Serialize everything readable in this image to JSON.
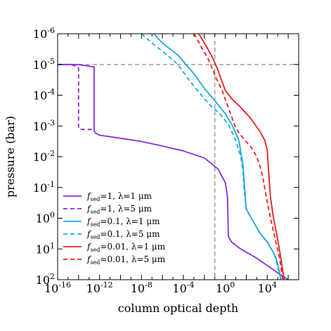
{
  "chart_data": {
    "type": "line",
    "xlabel": "column optical depth",
    "ylabel": "pressure (bar)",
    "x_scale": "log",
    "y_scale": "log",
    "y_inverted": true,
    "xlim": [
      1e-16,
      10000000.0
    ],
    "ylim": [
      1e-06,
      100.0
    ],
    "x_ticks": [
      {
        "base": "10",
        "exp": "-16",
        "value": 1e-16
      },
      {
        "base": "10",
        "exp": "-12",
        "value": 1e-12
      },
      {
        "base": "10",
        "exp": "-8",
        "value": 1e-08
      },
      {
        "base": "10",
        "exp": "-4",
        "value": 0.0001
      },
      {
        "base": "10",
        "exp": "0",
        "value": 1
      },
      {
        "base": "10",
        "exp": "4",
        "value": 10000.0
      }
    ],
    "y_ticks": [
      {
        "base": "10",
        "exp": "-6",
        "value": 1e-06
      },
      {
        "base": "10",
        "exp": "-5",
        "value": 1e-05
      },
      {
        "base": "10",
        "exp": "-4",
        "value": 0.0001
      },
      {
        "base": "10",
        "exp": "-3",
        "value": 0.001
      },
      {
        "base": "10",
        "exp": "-2",
        "value": 0.01
      },
      {
        "base": "10",
        "exp": "-1",
        "value": 0.1
      },
      {
        "base": "10",
        "exp": "0",
        "value": 1
      },
      {
        "base": "10",
        "exp": "1",
        "value": 10
      },
      {
        "base": "10",
        "exp": "2",
        "value": 100
      }
    ],
    "reference_lines": [
      {
        "orientation": "horizontal",
        "value": 1e-05,
        "color": "#a0a0a0",
        "dash": "dashed"
      },
      {
        "orientation": "vertical",
        "value": 0.1,
        "color": "#a0a0a0",
        "dash": "dashed"
      }
    ],
    "legend_position": "lower-left",
    "series": [
      {
        "label": {
          "pre": "f",
          "sub": "sed",
          "post": "=1, λ=1 μm"
        },
        "color": "#8b2be2",
        "dash": "solid",
        "points": [
          [
            1e-16,
            1e-05
          ],
          [
            1e-14,
            1e-05
          ],
          [
            3e-13,
            1.2e-05
          ],
          [
            3e-13,
            0.0001
          ],
          [
            3e-13,
            0.0005
          ],
          [
            3e-13,
            0.0014
          ],
          [
            4e-13,
            0.0017
          ],
          [
            1e-12,
            0.002
          ],
          [
            1e-10,
            0.0025
          ],
          [
            1e-08,
            0.0032
          ],
          [
            1e-06,
            0.0045
          ],
          [
            0.0001,
            0.0065
          ],
          [
            0.01,
            0.011
          ],
          [
            0.2,
            0.025
          ],
          [
            1,
            0.07
          ],
          [
            1.6,
            0.2
          ],
          [
            1.8,
            1
          ],
          [
            1.9,
            3
          ],
          [
            2,
            4
          ],
          [
            4,
            6
          ],
          [
            30,
            10
          ],
          [
            1000.0,
            20
          ],
          [
            100000.0,
            60
          ],
          [
            1000000.0,
            100
          ]
        ]
      },
      {
        "label": {
          "pre": "f",
          "sub": "sed",
          "post": "=1, λ=5 μm"
        },
        "color": "#8b2be2",
        "dash": "dashed",
        "points": [
          [
            1e-16,
            1e-05
          ],
          [
            1e-15,
            1e-05
          ],
          [
            5e-15,
            1.1e-05
          ],
          [
            1e-14,
            1.3e-05
          ],
          [
            1e-14,
            0.0001
          ],
          [
            1e-14,
            0.0005
          ],
          [
            1e-14,
            0.0012
          ],
          [
            2e-14,
            0.0013
          ],
          [
            2e-13,
            0.0013
          ]
        ]
      },
      {
        "label": {
          "pre": "f",
          "sub": "sed",
          "post": "=0.1, λ=1 μm"
        },
        "color": "#1ea8e0",
        "dash": "solid",
        "points": [
          [
            1.5e-07,
            1e-06
          ],
          [
            1e-06,
            2e-06
          ],
          [
            3e-05,
            5e-06
          ],
          [
            0.0001,
            8e-06
          ],
          [
            0.001,
            2e-05
          ],
          [
            0.01,
            6e-05
          ],
          [
            0.1,
            0.00015
          ],
          [
            1,
            0.0004
          ],
          [
            5,
            0.001
          ],
          [
            20,
            0.003
          ],
          [
            50,
            0.02
          ],
          [
            60,
            0.05
          ],
          [
            70,
            0.1
          ],
          [
            100,
            0.5
          ],
          [
            300,
            1
          ],
          [
            2000.0,
            3
          ],
          [
            10000.0,
            6
          ],
          [
            50000.0,
            15
          ],
          [
            100000.0,
            30
          ],
          [
            200000.0,
            100
          ]
        ]
      },
      {
        "label": {
          "pre": "f",
          "sub": "sed",
          "post": "=0.1, λ=5 μm"
        },
        "color": "#1ea8e0",
        "dash": "dashed",
        "points": [
          [
            1e-08,
            1e-06
          ],
          [
            1e-07,
            2e-06
          ],
          [
            3e-06,
            5e-06
          ],
          [
            3e-05,
            1e-05
          ],
          [
            0.0003,
            3e-05
          ],
          [
            0.003,
            8e-05
          ],
          [
            0.03,
            0.0002
          ],
          [
            0.3,
            0.0004
          ],
          [
            2,
            0.0009
          ],
          [
            10,
            0.003
          ],
          [
            30,
            0.01
          ],
          [
            50,
            0.03
          ],
          [
            60,
            0.1
          ],
          [
            100,
            0.5
          ],
          [
            300,
            1
          ],
          [
            2000.0,
            3
          ],
          [
            10000.0,
            6
          ],
          [
            50000.0,
            15
          ],
          [
            200000.0,
            100
          ]
        ]
      },
      {
        "label": {
          "pre": "f",
          "sub": "sed",
          "post": "=0.01, λ=1 μm"
        },
        "color": "#e81f1f",
        "dash": "solid",
        "points": [
          [
            0.003,
            1e-06
          ],
          [
            0.006,
            1.5e-06
          ],
          [
            0.02,
            3e-06
          ],
          [
            0.06,
            6e-06
          ],
          [
            0.15,
            1.2e-05
          ],
          [
            0.4,
            3e-05
          ],
          [
            1,
            7e-05
          ],
          [
            5,
            0.00014
          ],
          [
            30,
            0.00025
          ],
          [
            300,
            0.0006
          ],
          [
            2000.0,
            0.0015
          ],
          [
            6000.0,
            0.003
          ],
          [
            10000.0,
            0.006
          ],
          [
            12000.0,
            0.015
          ],
          [
            15000.0,
            0.05
          ],
          [
            20000.0,
            0.2
          ],
          [
            40000.0,
            1
          ],
          [
            100000.0,
            5
          ],
          [
            200000.0,
            20
          ],
          [
            400000.0,
            100
          ]
        ]
      },
      {
        "label": {
          "pre": "f",
          "sub": "sed",
          "post": "=0.01, λ=5 μm"
        },
        "color": "#e81f1f",
        "dash": "dashed",
        "points": [
          [
            0.001,
            1e-06
          ],
          [
            0.002,
            1.5e-06
          ],
          [
            0.006,
            3e-06
          ],
          [
            0.02,
            6e-06
          ],
          [
            0.05,
            1.2e-05
          ],
          [
            0.15,
            3e-05
          ],
          [
            0.5,
            7e-05
          ],
          [
            1.5,
            0.0002
          ],
          [
            4,
            0.0005
          ],
          [
            10,
            0.0012
          ],
          [
            50,
            0.0025
          ],
          [
            300,
            0.005
          ],
          [
            1000.0,
            0.01
          ],
          [
            2000.0,
            0.02
          ],
          [
            4000.0,
            0.05
          ],
          [
            8000.0,
            0.2
          ],
          [
            20000.0,
            1
          ],
          [
            60000.0,
            5
          ],
          [
            150000.0,
            20
          ],
          [
            300000.0,
            100
          ]
        ]
      }
    ]
  }
}
